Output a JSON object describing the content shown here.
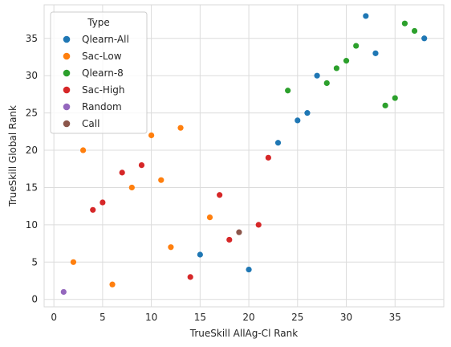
{
  "chart_data": {
    "type": "scatter",
    "xlabel": "TrueSkill AllAg-Cl Rank",
    "ylabel": "TrueSkill Global Rank",
    "xlim": [
      -1,
      40
    ],
    "ylim": [
      -1,
      39.5
    ],
    "xticks": [
      0,
      5,
      10,
      15,
      20,
      25,
      30,
      35
    ],
    "yticks": [
      0,
      5,
      10,
      15,
      20,
      25,
      30,
      35
    ],
    "grid": true,
    "legend": {
      "title": "Type",
      "placement": "top-left"
    },
    "series": [
      {
        "name": "Qlearn-All",
        "color": "#1f77b4",
        "points": [
          [
            15,
            6
          ],
          [
            20,
            4
          ],
          [
            23,
            21
          ],
          [
            25,
            24
          ],
          [
            26,
            25
          ],
          [
            27,
            30
          ],
          [
            32,
            38
          ],
          [
            33,
            33
          ],
          [
            38,
            35
          ]
        ]
      },
      {
        "name": "Sac-Low",
        "color": "#ff7f0e",
        "points": [
          [
            2,
            5
          ],
          [
            3,
            20
          ],
          [
            6,
            2
          ],
          [
            8,
            15
          ],
          [
            10,
            22
          ],
          [
            11,
            16
          ],
          [
            12,
            7
          ],
          [
            13,
            23
          ],
          [
            16,
            11
          ]
        ]
      },
      {
        "name": "Qlearn-8",
        "color": "#2ca02c",
        "points": [
          [
            24,
            28
          ],
          [
            28,
            29
          ],
          [
            29,
            31
          ],
          [
            30,
            32
          ],
          [
            31,
            34
          ],
          [
            34,
            26
          ],
          [
            35,
            27
          ],
          [
            36,
            37
          ],
          [
            37,
            36
          ]
        ]
      },
      {
        "name": "Sac-High",
        "color": "#d62728",
        "points": [
          [
            4,
            12
          ],
          [
            5,
            13
          ],
          [
            7,
            17
          ],
          [
            9,
            18
          ],
          [
            14,
            3
          ],
          [
            17,
            14
          ],
          [
            18,
            8
          ],
          [
            21,
            10
          ],
          [
            22,
            19
          ]
        ]
      },
      {
        "name": "Random",
        "color": "#9467bd",
        "points": [
          [
            1,
            1
          ]
        ]
      },
      {
        "name": "Call",
        "color": "#8c564b",
        "points": [
          [
            19,
            9
          ]
        ]
      }
    ]
  }
}
